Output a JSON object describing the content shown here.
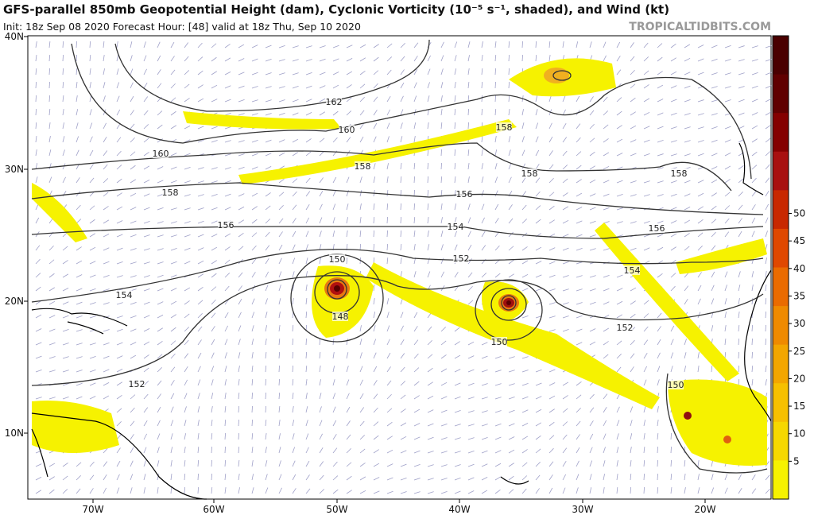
{
  "header": {
    "title": "GFS-parallel 850mb Geopotential Height (dam), Cyclonic Vorticity (10⁻⁵ s⁻¹, shaded), and Wind (kt)",
    "subtitle": "Init: 18z Sep 08 2020   Forecast Hour: [48]   valid at 18z Thu, Sep 10 2020",
    "source": "TROPICALTIDBITS.COM"
  },
  "map": {
    "lat_labels": [
      "40N",
      "30N",
      "20N",
      "10N"
    ],
    "lon_labels": [
      "70W",
      "60W",
      "50W",
      "40W",
      "30W",
      "20W"
    ],
    "contour_labels": [
      162,
      160,
      160,
      158,
      158,
      158,
      158,
      158,
      156,
      156,
      156,
      154,
      154,
      154,
      152,
      152,
      152,
      150,
      150,
      150,
      148
    ]
  },
  "colorbar": {
    "ticks": [
      5,
      10,
      15,
      20,
      25,
      30,
      35,
      40,
      45,
      50
    ]
  }
}
